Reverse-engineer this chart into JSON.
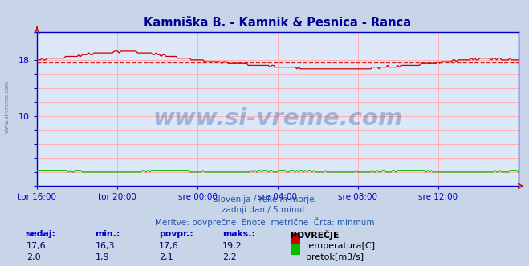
{
  "title": "Kamniška B. - Kamnik & Pesnica - Ranca",
  "title_color": "#000099",
  "title_fontsize": 10.5,
  "bg_color": "#c8d4e8",
  "plot_bg_color": "#dce8f8",
  "grid_color": "#ffb0b0",
  "axis_color": "#0000cc",
  "text_color": "#2255aa",
  "ylim": [
    0,
    22
  ],
  "yticks": [
    0,
    2,
    4,
    6,
    8,
    10,
    12,
    14,
    16,
    18,
    20,
    22
  ],
  "ylabel_show": [
    10,
    18
  ],
  "xlabel_ticks": [
    "tor 16:00",
    "tor 20:00",
    "sre 00:00",
    "sre 04:00",
    "sre 08:00",
    "sre 12:00"
  ],
  "temp_color": "#cc0000",
  "temp_avg_value": 17.6,
  "flow_color": "#00bb00",
  "flow_avg_value": 2.1,
  "watermark_text": "www.si-vreme.com",
  "watermark_color": "#1a3a8a",
  "watermark_alpha": 0.3,
  "sub_text1": "Slovenija / reke in morje.",
  "sub_text2": "zadnji dan / 5 minut.",
  "sub_text3": "Meritve: povprečne  Enote: metrične  Črta: minmum",
  "legend_title": "POVREČJE",
  "legend_items": [
    {
      "label": "temperatura[C]",
      "color": "#cc0000"
    },
    {
      "label": "pretok[m3/s]",
      "color": "#00bb00"
    }
  ],
  "stats_headers": [
    "sedaj:",
    "min.:",
    "povpr.:",
    "maks.:"
  ],
  "stats_temp": [
    "17,6",
    "16,3",
    "17,6",
    "19,2"
  ],
  "stats_flow": [
    "2,0",
    "1,9",
    "2,1",
    "2,2"
  ],
  "n_points": 288
}
